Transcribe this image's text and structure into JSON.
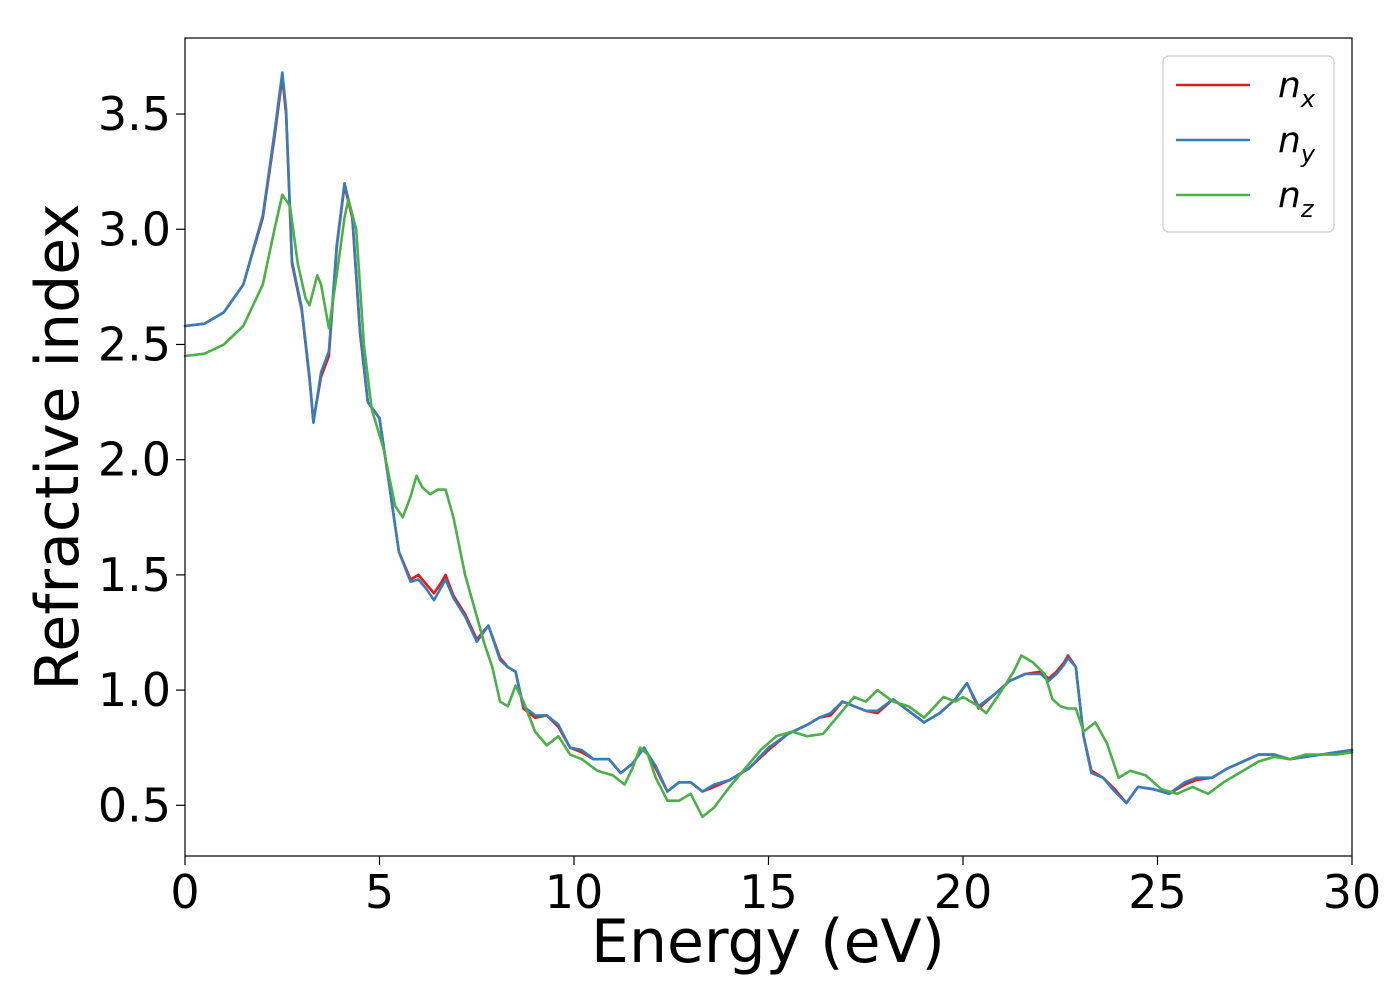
{
  "chart_data": {
    "type": "line",
    "title": "",
    "xlabel": "Energy (eV)",
    "ylabel": "Refractive index",
    "xlim": [
      0,
      30
    ],
    "ylim": [
      0.28,
      3.83
    ],
    "xticks": [
      0,
      5,
      10,
      15,
      20,
      25,
      30
    ],
    "yticks": [
      0.5,
      1.0,
      1.5,
      2.0,
      2.5,
      3.0,
      3.5
    ],
    "xtick_labels": [
      "0",
      "5",
      "10",
      "15",
      "20",
      "25",
      "30"
    ],
    "ytick_labels": [
      "0.5",
      "1.0",
      "1.5",
      "2.0",
      "2.5",
      "3.0",
      "3.5"
    ],
    "grid": false,
    "legend": "top-right",
    "series": [
      {
        "name": "n_x",
        "legend_base": "n",
        "legend_sub": "x",
        "color": "#e41a1c",
        "points": [
          [
            0,
            2.58
          ],
          [
            0.5,
            2.59
          ],
          [
            1.0,
            2.64
          ],
          [
            1.5,
            2.76
          ],
          [
            2.0,
            3.05
          ],
          [
            2.3,
            3.4
          ],
          [
            2.5,
            3.66
          ],
          [
            2.6,
            3.5
          ],
          [
            2.75,
            2.85
          ],
          [
            3.0,
            2.65
          ],
          [
            3.2,
            2.35
          ],
          [
            3.3,
            2.17
          ],
          [
            3.5,
            2.36
          ],
          [
            3.7,
            2.45
          ],
          [
            3.9,
            2.92
          ],
          [
            4.1,
            3.19
          ],
          [
            4.3,
            3.05
          ],
          [
            4.5,
            2.55
          ],
          [
            4.7,
            2.25
          ],
          [
            5.0,
            2.18
          ],
          [
            5.2,
            1.95
          ],
          [
            5.5,
            1.6
          ],
          [
            5.8,
            1.48
          ],
          [
            6.0,
            1.5
          ],
          [
            6.2,
            1.46
          ],
          [
            6.4,
            1.42
          ],
          [
            6.6,
            1.47
          ],
          [
            6.7,
            1.5
          ],
          [
            6.9,
            1.41
          ],
          [
            7.2,
            1.33
          ],
          [
            7.5,
            1.22
          ],
          [
            7.8,
            1.28
          ],
          [
            8.1,
            1.14
          ],
          [
            8.3,
            1.1
          ],
          [
            8.5,
            1.08
          ],
          [
            8.7,
            0.92
          ],
          [
            9.0,
            0.88
          ],
          [
            9.3,
            0.89
          ],
          [
            9.6,
            0.84
          ],
          [
            9.9,
            0.75
          ],
          [
            10.2,
            0.73
          ],
          [
            10.5,
            0.7
          ],
          [
            10.9,
            0.7
          ],
          [
            11.2,
            0.64
          ],
          [
            11.5,
            0.68
          ],
          [
            11.8,
            0.75
          ],
          [
            12.1,
            0.66
          ],
          [
            12.4,
            0.56
          ],
          [
            12.7,
            0.6
          ],
          [
            13.0,
            0.6
          ],
          [
            13.3,
            0.56
          ],
          [
            13.6,
            0.58
          ],
          [
            14.0,
            0.61
          ],
          [
            14.5,
            0.66
          ],
          [
            15.0,
            0.74
          ],
          [
            15.5,
            0.81
          ],
          [
            16.0,
            0.85
          ],
          [
            16.3,
            0.88
          ],
          [
            16.6,
            0.89
          ],
          [
            16.9,
            0.95
          ],
          [
            17.2,
            0.93
          ],
          [
            17.5,
            0.91
          ],
          [
            17.8,
            0.9
          ],
          [
            18.2,
            0.96
          ],
          [
            18.6,
            0.91
          ],
          [
            19.0,
            0.86
          ],
          [
            19.4,
            0.9
          ],
          [
            19.8,
            0.96
          ],
          [
            20.1,
            1.03
          ],
          [
            20.4,
            0.92
          ],
          [
            20.8,
            0.98
          ],
          [
            21.2,
            1.04
          ],
          [
            21.6,
            1.07
          ],
          [
            22.0,
            1.08
          ],
          [
            22.2,
            1.05
          ],
          [
            22.4,
            1.08
          ],
          [
            22.6,
            1.12
          ],
          [
            22.7,
            1.15
          ],
          [
            22.9,
            1.1
          ],
          [
            23.1,
            0.8
          ],
          [
            23.3,
            0.65
          ],
          [
            23.6,
            0.62
          ],
          [
            23.9,
            0.57
          ],
          [
            24.2,
            0.51
          ],
          [
            24.5,
            0.58
          ],
          [
            24.9,
            0.57
          ],
          [
            25.3,
            0.55
          ],
          [
            25.7,
            0.59
          ],
          [
            26.0,
            0.61
          ],
          [
            26.4,
            0.62
          ],
          [
            26.8,
            0.66
          ],
          [
            27.2,
            0.69
          ],
          [
            27.6,
            0.72
          ],
          [
            28.0,
            0.72
          ],
          [
            28.4,
            0.7
          ],
          [
            28.8,
            0.71
          ],
          [
            29.2,
            0.72
          ],
          [
            29.6,
            0.73
          ],
          [
            30.0,
            0.74
          ]
        ]
      },
      {
        "name": "n_y",
        "legend_base": "n",
        "legend_sub": "y",
        "color": "#377eb8",
        "points": [
          [
            0,
            2.58
          ],
          [
            0.5,
            2.59
          ],
          [
            1.0,
            2.64
          ],
          [
            1.5,
            2.76
          ],
          [
            2.0,
            3.06
          ],
          [
            2.3,
            3.42
          ],
          [
            2.5,
            3.68
          ],
          [
            2.6,
            3.52
          ],
          [
            2.75,
            2.86
          ],
          [
            3.0,
            2.66
          ],
          [
            3.2,
            2.36
          ],
          [
            3.3,
            2.16
          ],
          [
            3.5,
            2.38
          ],
          [
            3.7,
            2.47
          ],
          [
            3.9,
            2.93
          ],
          [
            4.1,
            3.2
          ],
          [
            4.3,
            3.06
          ],
          [
            4.5,
            2.56
          ],
          [
            4.7,
            2.25
          ],
          [
            5.0,
            2.18
          ],
          [
            5.2,
            1.95
          ],
          [
            5.5,
            1.6
          ],
          [
            5.8,
            1.47
          ],
          [
            6.0,
            1.48
          ],
          [
            6.2,
            1.44
          ],
          [
            6.4,
            1.39
          ],
          [
            6.6,
            1.45
          ],
          [
            6.7,
            1.48
          ],
          [
            6.9,
            1.4
          ],
          [
            7.2,
            1.32
          ],
          [
            7.5,
            1.21
          ],
          [
            7.8,
            1.28
          ],
          [
            8.1,
            1.13
          ],
          [
            8.3,
            1.1
          ],
          [
            8.5,
            1.08
          ],
          [
            8.7,
            0.93
          ],
          [
            9.0,
            0.89
          ],
          [
            9.3,
            0.89
          ],
          [
            9.6,
            0.85
          ],
          [
            9.9,
            0.75
          ],
          [
            10.2,
            0.74
          ],
          [
            10.5,
            0.7
          ],
          [
            10.9,
            0.7
          ],
          [
            11.2,
            0.64
          ],
          [
            11.5,
            0.68
          ],
          [
            11.8,
            0.75
          ],
          [
            12.1,
            0.67
          ],
          [
            12.4,
            0.56
          ],
          [
            12.7,
            0.6
          ],
          [
            13.0,
            0.6
          ],
          [
            13.3,
            0.56
          ],
          [
            13.6,
            0.59
          ],
          [
            14.0,
            0.61
          ],
          [
            14.5,
            0.66
          ],
          [
            15.0,
            0.75
          ],
          [
            15.5,
            0.81
          ],
          [
            16.0,
            0.85
          ],
          [
            16.3,
            0.88
          ],
          [
            16.6,
            0.9
          ],
          [
            16.9,
            0.95
          ],
          [
            17.2,
            0.93
          ],
          [
            17.5,
            0.91
          ],
          [
            17.8,
            0.91
          ],
          [
            18.2,
            0.96
          ],
          [
            18.6,
            0.91
          ],
          [
            19.0,
            0.86
          ],
          [
            19.4,
            0.9
          ],
          [
            19.8,
            0.96
          ],
          [
            20.1,
            1.03
          ],
          [
            20.4,
            0.93
          ],
          [
            20.8,
            0.98
          ],
          [
            21.2,
            1.04
          ],
          [
            21.6,
            1.07
          ],
          [
            22.0,
            1.07
          ],
          [
            22.2,
            1.04
          ],
          [
            22.4,
            1.07
          ],
          [
            22.6,
            1.11
          ],
          [
            22.7,
            1.14
          ],
          [
            22.9,
            1.1
          ],
          [
            23.1,
            0.8
          ],
          [
            23.3,
            0.64
          ],
          [
            23.6,
            0.62
          ],
          [
            23.9,
            0.56
          ],
          [
            24.2,
            0.51
          ],
          [
            24.5,
            0.58
          ],
          [
            24.9,
            0.57
          ],
          [
            25.3,
            0.55
          ],
          [
            25.7,
            0.6
          ],
          [
            26.0,
            0.62
          ],
          [
            26.4,
            0.62
          ],
          [
            26.8,
            0.66
          ],
          [
            27.2,
            0.69
          ],
          [
            27.6,
            0.72
          ],
          [
            28.0,
            0.72
          ],
          [
            28.4,
            0.7
          ],
          [
            28.8,
            0.71
          ],
          [
            29.2,
            0.72
          ],
          [
            29.6,
            0.73
          ],
          [
            30.0,
            0.74
          ]
        ]
      },
      {
        "name": "n_z",
        "legend_base": "n",
        "legend_sub": "z",
        "color": "#4daf4a",
        "points": [
          [
            0,
            2.45
          ],
          [
            0.5,
            2.46
          ],
          [
            1.0,
            2.5
          ],
          [
            1.5,
            2.58
          ],
          [
            2.0,
            2.76
          ],
          [
            2.3,
            3.0
          ],
          [
            2.5,
            3.15
          ],
          [
            2.7,
            3.1
          ],
          [
            2.9,
            2.85
          ],
          [
            3.1,
            2.7
          ],
          [
            3.2,
            2.67
          ],
          [
            3.4,
            2.8
          ],
          [
            3.5,
            2.76
          ],
          [
            3.7,
            2.57
          ],
          [
            3.9,
            2.8
          ],
          [
            4.1,
            3.05
          ],
          [
            4.2,
            3.13
          ],
          [
            4.4,
            3.0
          ],
          [
            4.6,
            2.5
          ],
          [
            4.8,
            2.22
          ],
          [
            5.1,
            2.05
          ],
          [
            5.4,
            1.8
          ],
          [
            5.6,
            1.75
          ],
          [
            5.8,
            1.84
          ],
          [
            5.95,
            1.93
          ],
          [
            6.1,
            1.88
          ],
          [
            6.3,
            1.85
          ],
          [
            6.5,
            1.87
          ],
          [
            6.7,
            1.87
          ],
          [
            6.9,
            1.75
          ],
          [
            7.2,
            1.5
          ],
          [
            7.4,
            1.38
          ],
          [
            7.7,
            1.2
          ],
          [
            7.9,
            1.1
          ],
          [
            8.1,
            0.95
          ],
          [
            8.3,
            0.93
          ],
          [
            8.5,
            1.02
          ],
          [
            8.7,
            0.95
          ],
          [
            9.0,
            0.82
          ],
          [
            9.3,
            0.76
          ],
          [
            9.6,
            0.8
          ],
          [
            9.9,
            0.72
          ],
          [
            10.2,
            0.7
          ],
          [
            10.6,
            0.65
          ],
          [
            11.0,
            0.63
          ],
          [
            11.3,
            0.59
          ],
          [
            11.5,
            0.66
          ],
          [
            11.7,
            0.75
          ],
          [
            11.9,
            0.72
          ],
          [
            12.1,
            0.62
          ],
          [
            12.4,
            0.52
          ],
          [
            12.7,
            0.52
          ],
          [
            13.0,
            0.55
          ],
          [
            13.3,
            0.45
          ],
          [
            13.6,
            0.49
          ],
          [
            14.0,
            0.58
          ],
          [
            14.4,
            0.66
          ],
          [
            14.8,
            0.74
          ],
          [
            15.2,
            0.8
          ],
          [
            15.6,
            0.82
          ],
          [
            16.0,
            0.8
          ],
          [
            16.4,
            0.81
          ],
          [
            16.8,
            0.89
          ],
          [
            17.2,
            0.97
          ],
          [
            17.5,
            0.95
          ],
          [
            17.8,
            1.0
          ],
          [
            18.2,
            0.95
          ],
          [
            18.6,
            0.93
          ],
          [
            19.0,
            0.88
          ],
          [
            19.5,
            0.97
          ],
          [
            19.8,
            0.95
          ],
          [
            20.0,
            0.97
          ],
          [
            20.3,
            0.94
          ],
          [
            20.6,
            0.9
          ],
          [
            21.0,
            1.0
          ],
          [
            21.3,
            1.08
          ],
          [
            21.5,
            1.15
          ],
          [
            21.8,
            1.12
          ],
          [
            22.1,
            1.07
          ],
          [
            22.3,
            0.96
          ],
          [
            22.5,
            0.93
          ],
          [
            22.7,
            0.92
          ],
          [
            22.9,
            0.92
          ],
          [
            23.1,
            0.82
          ],
          [
            23.4,
            0.86
          ],
          [
            23.7,
            0.77
          ],
          [
            24.0,
            0.62
          ],
          [
            24.3,
            0.65
          ],
          [
            24.7,
            0.63
          ],
          [
            25.1,
            0.57
          ],
          [
            25.5,
            0.55
          ],
          [
            25.9,
            0.58
          ],
          [
            26.3,
            0.55
          ],
          [
            26.7,
            0.6
          ],
          [
            27.2,
            0.65
          ],
          [
            27.6,
            0.69
          ],
          [
            28.0,
            0.71
          ],
          [
            28.4,
            0.7
          ],
          [
            28.8,
            0.72
          ],
          [
            29.2,
            0.72
          ],
          [
            29.6,
            0.72
          ],
          [
            30.0,
            0.73
          ]
        ]
      }
    ]
  }
}
